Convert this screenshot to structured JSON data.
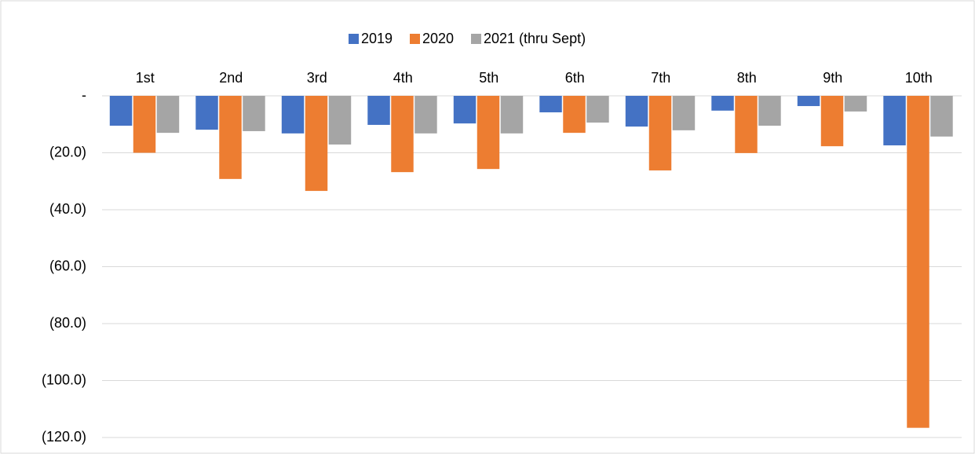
{
  "chart_data": {
    "type": "bar",
    "categories": [
      "1st",
      "2nd",
      "3rd",
      "4th",
      "5th",
      "6th",
      "7th",
      "8th",
      "9th",
      "10th"
    ],
    "series": [
      {
        "name": "2019",
        "color": "#4472c4",
        "values": [
          -10.5,
          -11.9,
          -13.2,
          -10.2,
          -9.7,
          -5.8,
          -10.8,
          -5.2,
          -3.6,
          -17.4
        ]
      },
      {
        "name": "2020",
        "color": "#ed7d31",
        "values": [
          -20.0,
          -29.2,
          -33.4,
          -26.8,
          -25.7,
          -13.0,
          -26.2,
          -20.1,
          -17.7,
          -116.6
        ]
      },
      {
        "name": "2021 (thru Sept)",
        "color": "#a5a5a5",
        "values": [
          -13.0,
          -12.4,
          -17.1,
          -13.2,
          -13.2,
          -9.4,
          -12.1,
          -10.5,
          -5.5,
          -14.3
        ]
      }
    ],
    "ylim": [
      -120,
      0
    ],
    "yticks": [
      {
        "value": 0,
        "label": "-"
      },
      {
        "value": -20,
        "label": "(20.0)"
      },
      {
        "value": -40,
        "label": "(40.0)"
      },
      {
        "value": -60,
        "label": "(60.0)"
      },
      {
        "value": -80,
        "label": "(80.0)"
      },
      {
        "value": -100,
        "label": "(100.0)"
      },
      {
        "value": -120,
        "label": "(120.0)"
      }
    ],
    "grid": true,
    "legend": "top"
  }
}
